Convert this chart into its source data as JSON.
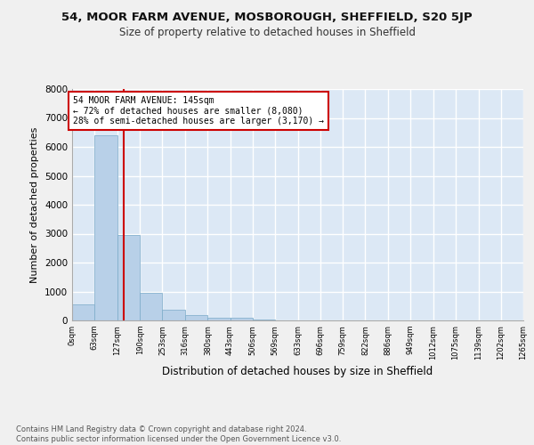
{
  "title1": "54, MOOR FARM AVENUE, MOSBOROUGH, SHEFFIELD, S20 5JP",
  "title2": "Size of property relative to detached houses in Sheffield",
  "xlabel": "Distribution of detached houses by size in Sheffield",
  "ylabel": "Number of detached properties",
  "bin_edges": [
    0,
    63,
    127,
    190,
    253,
    316,
    380,
    443,
    506,
    569,
    633,
    696,
    759,
    822,
    886,
    949,
    1012,
    1075,
    1139,
    1202,
    1265
  ],
  "bar_heights": [
    550,
    6400,
    2950,
    950,
    370,
    185,
    100,
    80,
    30,
    0,
    0,
    0,
    0,
    0,
    0,
    0,
    0,
    0,
    0,
    0
  ],
  "bar_color": "#b8d0e8",
  "bar_edge_color": "#7aaac8",
  "property_line_x": 145,
  "property_line_color": "#cc0000",
  "annotation_text": "54 MOOR FARM AVENUE: 145sqm\n← 72% of detached houses are smaller (8,080)\n28% of semi-detached houses are larger (3,170) →",
  "annotation_box_color": "#ffffff",
  "annotation_box_edge": "#cc0000",
  "ylim": [
    0,
    8000
  ],
  "yticks": [
    0,
    1000,
    2000,
    3000,
    4000,
    5000,
    6000,
    7000,
    8000
  ],
  "background_color": "#dce8f5",
  "grid_color": "#ffffff",
  "fig_background": "#f0f0f0",
  "footer_text": "Contains HM Land Registry data © Crown copyright and database right 2024.\nContains public sector information licensed under the Open Government Licence v3.0.",
  "tick_labels": [
    "0sqm",
    "63sqm",
    "127sqm",
    "190sqm",
    "253sqm",
    "316sqm",
    "380sqm",
    "443sqm",
    "506sqm",
    "569sqm",
    "633sqm",
    "696sqm",
    "759sqm",
    "822sqm",
    "886sqm",
    "949sqm",
    "1012sqm",
    "1075sqm",
    "1139sqm",
    "1202sqm",
    "1265sqm"
  ],
  "title1_fontsize": 9.5,
  "title2_fontsize": 8.5,
  "ylabel_fontsize": 8,
  "xlabel_fontsize": 8.5
}
